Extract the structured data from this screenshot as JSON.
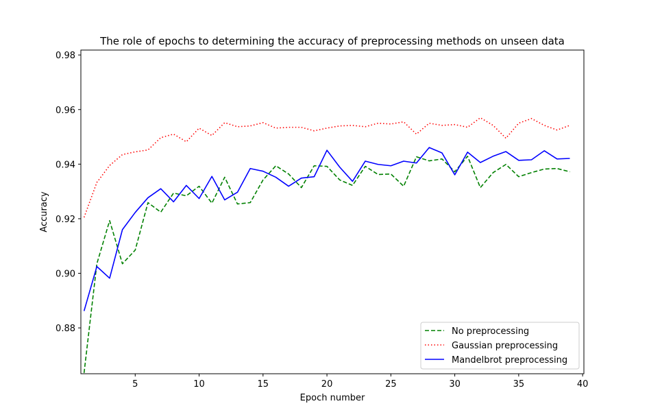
{
  "chart_data": {
    "type": "line",
    "title": "The role of epochs to determining the accuracy of preprocessing methods on unseen data",
    "xlabel": "Epoch number",
    "ylabel": "Accuracy",
    "xlim": [
      0.75,
      40.1
    ],
    "ylim": [
      0.8632,
      0.9818
    ],
    "xticks": [
      5,
      10,
      15,
      20,
      25,
      30,
      35,
      40
    ],
    "yticks": [
      0.88,
      0.9,
      0.92,
      0.94,
      0.96,
      0.98
    ],
    "ytick_labels": [
      "0.88",
      "0.90",
      "0.92",
      "0.94",
      "0.96",
      "0.98"
    ],
    "grid": false,
    "legend_position": "lower-right",
    "x": [
      1,
      2,
      3,
      4,
      5,
      6,
      7,
      8,
      9,
      10,
      11,
      12,
      13,
      14,
      15,
      16,
      17,
      18,
      19,
      20,
      21,
      22,
      23,
      24,
      25,
      26,
      27,
      28,
      29,
      30,
      31,
      32,
      33,
      34,
      35,
      36,
      37,
      38,
      39
    ],
    "series": [
      {
        "name": "No preprocessing",
        "color": "#008000",
        "dash": "dashed",
        "values": [
          0.8635,
          0.9035,
          0.9193,
          0.9035,
          0.9085,
          0.9259,
          0.9224,
          0.9294,
          0.9284,
          0.9319,
          0.9257,
          0.9352,
          0.9254,
          0.9259,
          0.9342,
          0.9394,
          0.9364,
          0.9314,
          0.9394,
          0.9392,
          0.9342,
          0.9322,
          0.9392,
          0.9362,
          0.9364,
          0.9319,
          0.9427,
          0.9412,
          0.9419,
          0.9372,
          0.9429,
          0.9314,
          0.9369,
          0.9399,
          0.9354,
          0.9369,
          0.9382,
          0.9384,
          0.9372
        ]
      },
      {
        "name": "Gaussian preprocessing",
        "color": "#ff0000",
        "dash": "dotted",
        "values": [
          0.9205,
          0.9333,
          0.9395,
          0.9435,
          0.9445,
          0.9452,
          0.9497,
          0.951,
          0.9482,
          0.9532,
          0.9505,
          0.9552,
          0.9537,
          0.954,
          0.9552,
          0.9532,
          0.9535,
          0.9535,
          0.9522,
          0.9532,
          0.954,
          0.9542,
          0.9537,
          0.955,
          0.9547,
          0.9555,
          0.951,
          0.955,
          0.9542,
          0.9545,
          0.9535,
          0.957,
          0.9542,
          0.9495,
          0.955,
          0.9567,
          0.9542,
          0.9525,
          0.9542
        ]
      },
      {
        "name": "Mandelbrot preprocessing",
        "color": "#0000ff",
        "dash": "solid",
        "values": [
          0.8862,
          0.9025,
          0.8982,
          0.916,
          0.9223,
          0.9277,
          0.931,
          0.9262,
          0.9322,
          0.9274,
          0.9355,
          0.9269,
          0.9297,
          0.9384,
          0.9374,
          0.9352,
          0.9319,
          0.9349,
          0.9354,
          0.9451,
          0.9389,
          0.9337,
          0.9411,
          0.9399,
          0.9394,
          0.9411,
          0.9404,
          0.9461,
          0.9441,
          0.9361,
          0.9444,
          0.9406,
          0.9429,
          0.9446,
          0.9414,
          0.9416,
          0.9449,
          0.9419,
          0.9421
        ]
      }
    ]
  }
}
